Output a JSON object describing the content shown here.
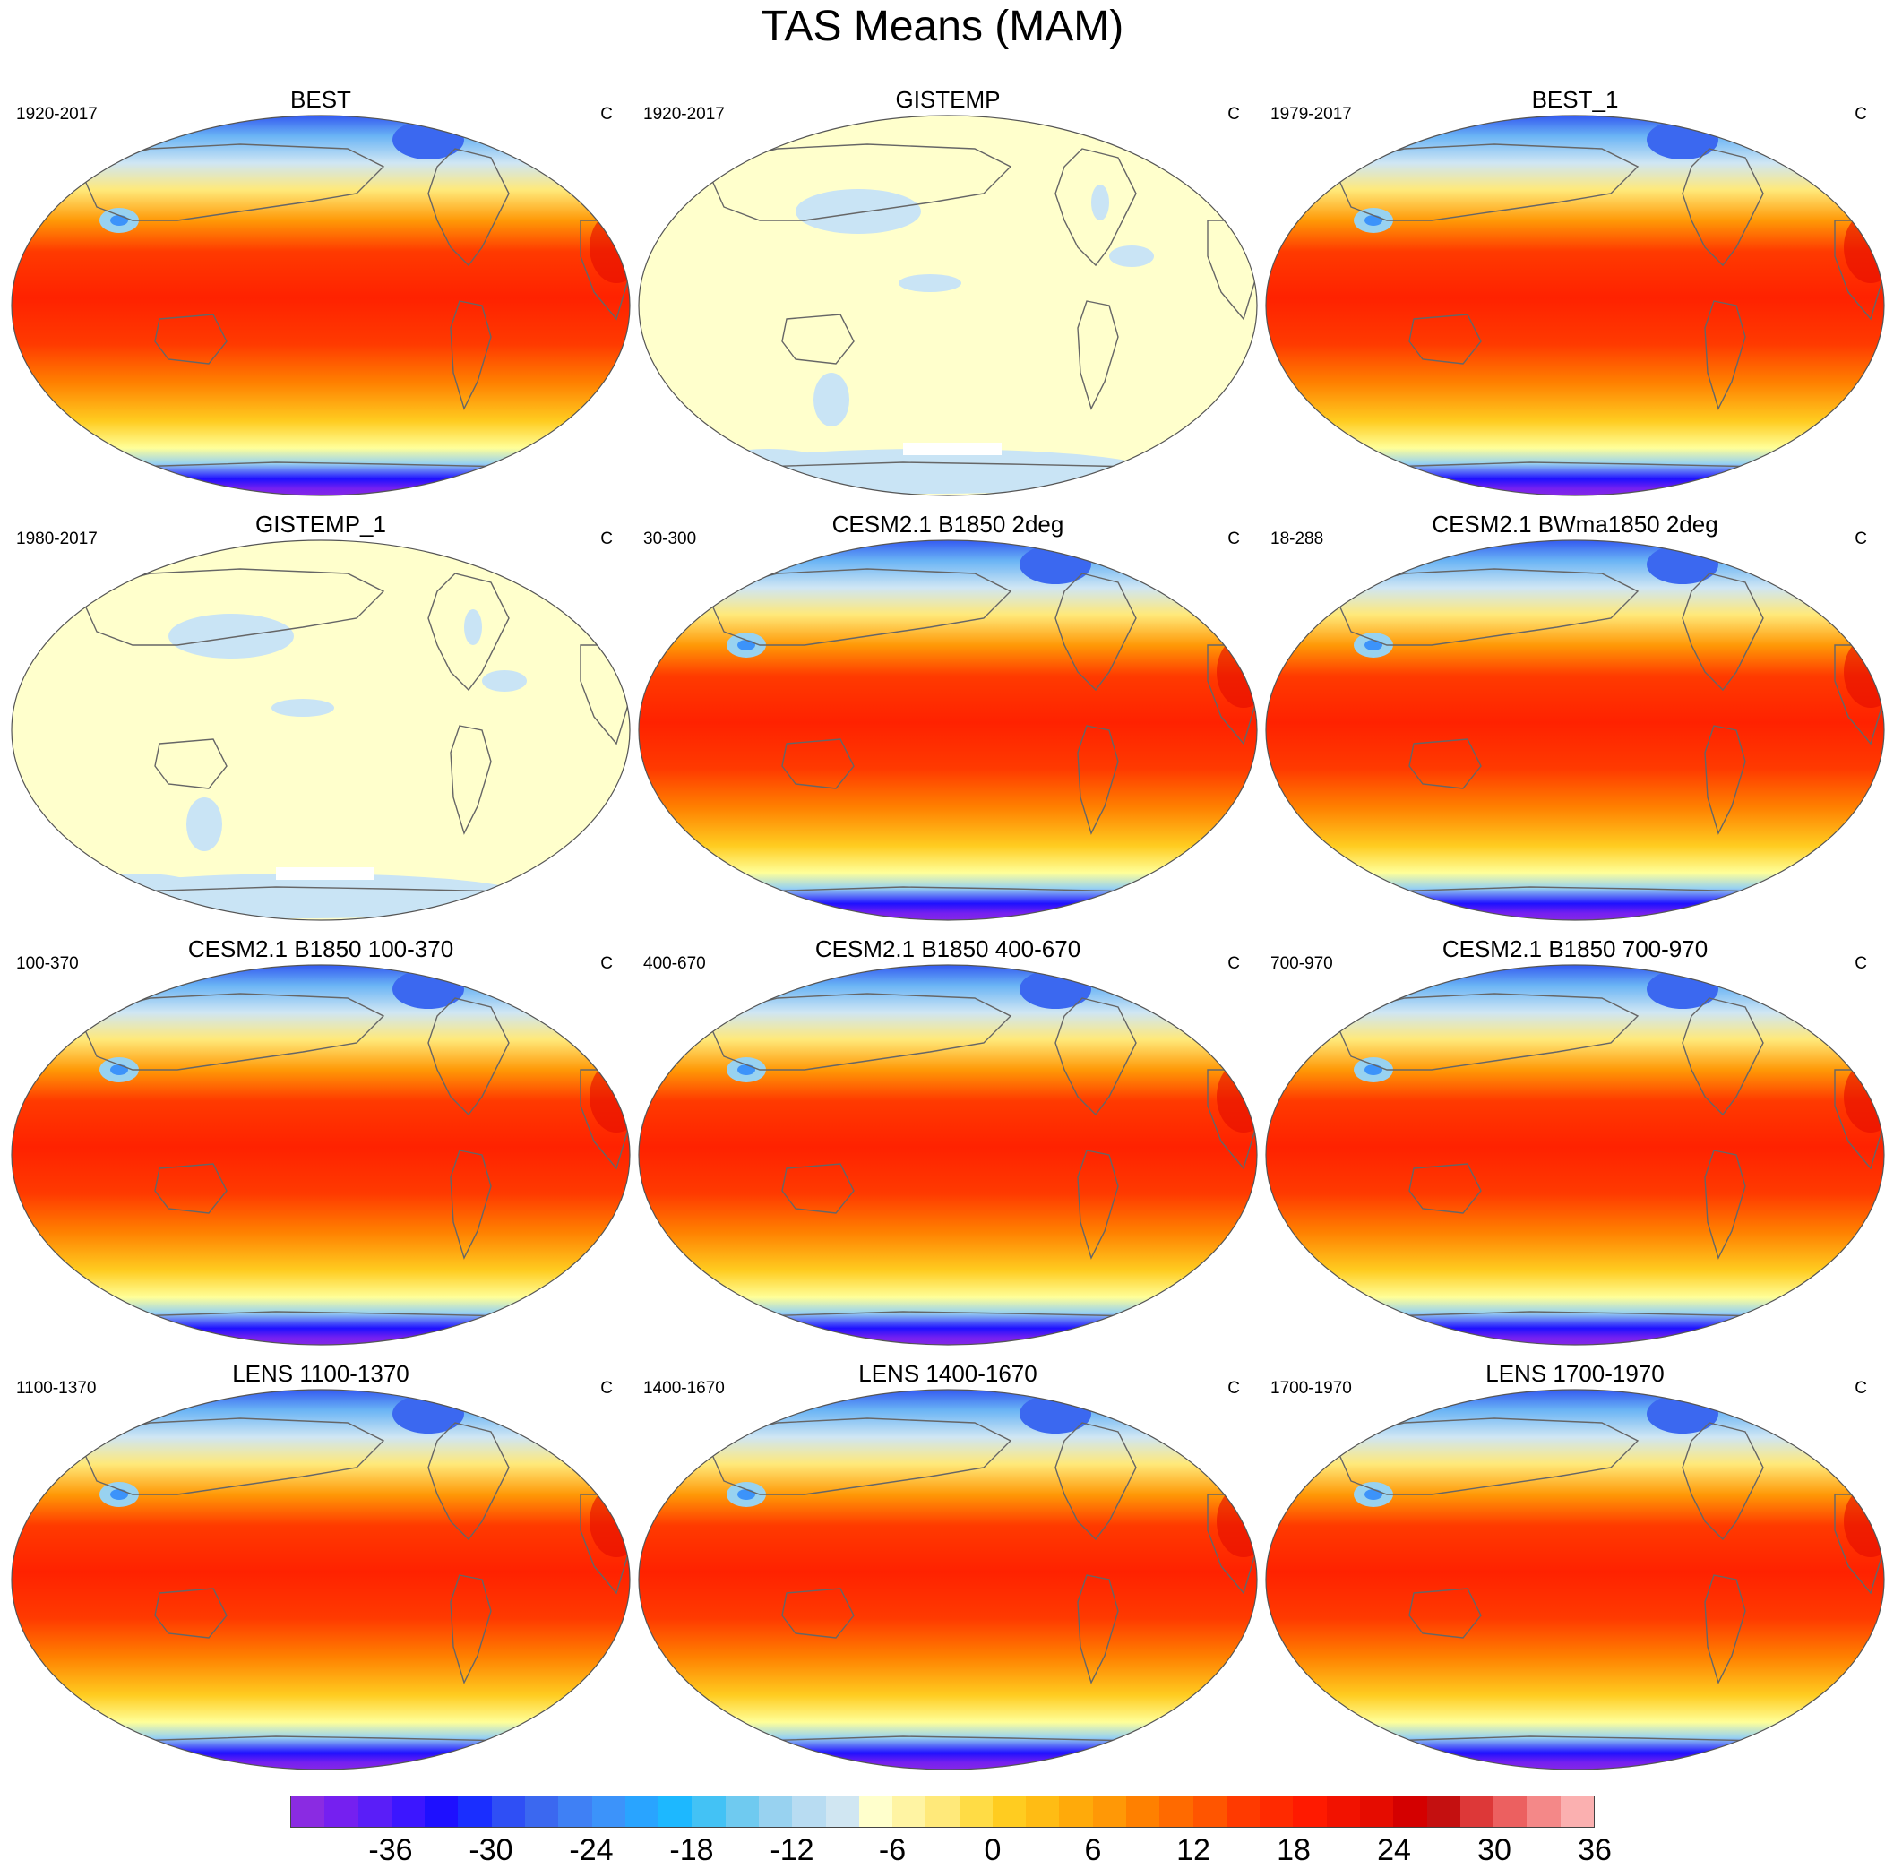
{
  "title": "TAS Means (MAM)",
  "unit": "C",
  "panels": [
    {
      "title": "BEST",
      "left": "1920-2017",
      "right": "C",
      "field": "full"
    },
    {
      "title": "GISTEMP",
      "left": "1920-2017",
      "right": "C",
      "field": "anom"
    },
    {
      "title": "BEST_1",
      "left": "1979-2017",
      "right": "C",
      "field": "full"
    },
    {
      "title": "GISTEMP_1",
      "left": "1980-2017",
      "right": "C",
      "field": "anom"
    },
    {
      "title": "CESM2.1 B1850 2deg",
      "left": "30-300",
      "right": "C",
      "field": "full"
    },
    {
      "title": "CESM2.1 BWma1850 2deg",
      "left": "18-288",
      "right": "C",
      "field": "full"
    },
    {
      "title": "CESM2.1 B1850 100-370",
      "left": "100-370",
      "right": "C",
      "field": "full"
    },
    {
      "title": "CESM2.1 B1850 400-670",
      "left": "400-670",
      "right": "C",
      "field": "full"
    },
    {
      "title": "CESM2.1 B1850 700-970",
      "left": "700-970",
      "right": "C",
      "field": "full"
    },
    {
      "title": "LENS 1100-1370",
      "left": "1100-1370",
      "right": "C",
      "field": "full"
    },
    {
      "title": "LENS 1400-1670",
      "left": "1400-1670",
      "right": "C",
      "field": "full"
    },
    {
      "title": "LENS 1700-1970",
      "left": "1700-1970",
      "right": "C",
      "field": "full"
    }
  ],
  "colorbar": {
    "colors": [
      "#8a2be2",
      "#7520f0",
      "#5a1ef8",
      "#3c16ff",
      "#1e10ff",
      "#1a2eff",
      "#2f4ff5",
      "#3b68f0",
      "#3f80f5",
      "#3c93fa",
      "#29a4ff",
      "#1db8ff",
      "#43c2f5",
      "#6fcaf0",
      "#98d2f0",
      "#b8dcf2",
      "#d0e6f2",
      "#ffffcc",
      "#fff4a3",
      "#ffe97a",
      "#ffdc45",
      "#ffcc20",
      "#ffbc14",
      "#ffaa0a",
      "#ff9806",
      "#ff8000",
      "#ff6a00",
      "#ff5500",
      "#ff3a00",
      "#ff2a00",
      "#ff1a00",
      "#f21200",
      "#e50c00",
      "#d40000",
      "#c41010",
      "#dd3838",
      "#ec6060",
      "#f48888",
      "#fbb0b0"
    ],
    "tick_labels": [
      "-36",
      "-30",
      "-24",
      "-18",
      "-12",
      "-6",
      "0",
      "6",
      "12",
      "18",
      "24",
      "30",
      "36"
    ],
    "tick_boxes": [
      3,
      6,
      9,
      12,
      15,
      18,
      21,
      24,
      27,
      30,
      33,
      36,
      39
    ]
  }
}
